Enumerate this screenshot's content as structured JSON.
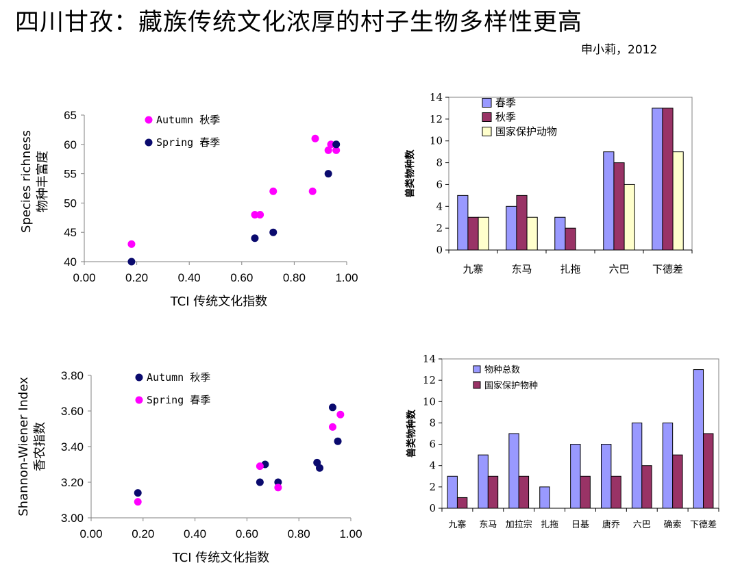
{
  "title": "四川甘孜：藏族传统文化浓厚的村子生物多样性更高",
  "author": "申小莉，2012",
  "colors": {
    "autumn": "#ff00ff",
    "spring": "#0a0a6e",
    "bar_blue": "#9999ff",
    "bar_red": "#993366",
    "bar_yellow": "#ffffcc"
  },
  "chart_data": [
    {
      "type": "scatter",
      "xlabel": "TCI 传统文化指数",
      "ylabel": "Species richness",
      "ylabel2": "物种丰富度",
      "xlim": [
        0,
        1
      ],
      "ylim": [
        40,
        65
      ],
      "xticks": [
        "0.00",
        "0.20",
        "0.40",
        "0.60",
        "0.80",
        "1.00"
      ],
      "yticks": [
        "40",
        "45",
        "50",
        "55",
        "60",
        "65"
      ],
      "legend": [
        "Autumn 秋季",
        "Spring 春季"
      ],
      "series": [
        {
          "name": "Autumn 秋季",
          "color": "#ff00ff",
          "points": [
            [
              0.18,
              43
            ],
            [
              0.65,
              48
            ],
            [
              0.67,
              48
            ],
            [
              0.72,
              52
            ],
            [
              0.87,
              52
            ],
            [
              0.88,
              61
            ],
            [
              0.93,
              59
            ],
            [
              0.94,
              60
            ],
            [
              0.96,
              59
            ]
          ]
        },
        {
          "name": "Spring 春季",
          "color": "#0a0a6e",
          "points": [
            [
              0.18,
              40
            ],
            [
              0.65,
              44
            ],
            [
              0.72,
              45
            ],
            [
              0.93,
              55
            ],
            [
              0.96,
              60
            ]
          ]
        }
      ]
    },
    {
      "type": "bar",
      "ylabel": "兽类物种数",
      "categories": [
        "九寨",
        "东马",
        "扎拖",
        "六巴",
        "下德差"
      ],
      "ylim": [
        0,
        14
      ],
      "yticks": [
        "0",
        "2",
        "4",
        "6",
        "8",
        "10",
        "12",
        "14"
      ],
      "series": [
        {
          "name": "春季",
          "color": "#9999ff",
          "values": [
            5,
            4,
            3,
            9,
            13
          ]
        },
        {
          "name": "秋季",
          "color": "#993366",
          "values": [
            3,
            5,
            2,
            8,
            13
          ]
        },
        {
          "name": "国家保护动物",
          "color": "#ffffcc",
          "values": [
            3,
            3,
            0,
            6,
            9
          ]
        }
      ]
    },
    {
      "type": "scatter",
      "xlabel": "TCI 传统文化指数",
      "ylabel": "Shannon-Wiener Index",
      "ylabel2": "香农指数",
      "xlim": [
        0,
        1
      ],
      "ylim": [
        3.0,
        3.8
      ],
      "xticks": [
        "0.00",
        "0.20",
        "0.40",
        "0.60",
        "0.80",
        "1.00"
      ],
      "yticks": [
        "3.00",
        "3.20",
        "3.40",
        "3.60",
        "3.80"
      ],
      "legend": [
        "Autumn 秋季",
        "Spring 春季"
      ],
      "series": [
        {
          "name": "Autumn 秋季",
          "color": "#0a0a6e",
          "points": [
            [
              0.18,
              3.14
            ],
            [
              0.65,
              3.2
            ],
            [
              0.67,
              3.3
            ],
            [
              0.72,
              3.2
            ],
            [
              0.87,
              3.31
            ],
            [
              0.88,
              3.28
            ],
            [
              0.93,
              3.62
            ],
            [
              0.95,
              3.43
            ]
          ]
        },
        {
          "name": "Spring 春季",
          "color": "#ff00ff",
          "points": [
            [
              0.18,
              3.09
            ],
            [
              0.65,
              3.29
            ],
            [
              0.72,
              3.17
            ],
            [
              0.93,
              3.51
            ],
            [
              0.96,
              3.58
            ]
          ]
        }
      ]
    },
    {
      "type": "bar",
      "ylabel": "兽类物种数",
      "categories": [
        "九寨",
        "东马",
        "加拉宗",
        "扎拖",
        "日基",
        "唐乔",
        "六巴",
        "确索",
        "下德差"
      ],
      "ylim": [
        0,
        14
      ],
      "yticks": [
        "0",
        "2",
        "4",
        "6",
        "8",
        "10",
        "12",
        "14"
      ],
      "series": [
        {
          "name": "物种总数",
          "color": "#9999ff",
          "values": [
            3,
            5,
            7,
            2,
            6,
            6,
            8,
            8,
            13
          ]
        },
        {
          "name": "国家保护物种",
          "color": "#993366",
          "values": [
            1,
            3,
            3,
            0,
            3,
            3,
            4,
            5,
            7
          ]
        }
      ]
    }
  ]
}
